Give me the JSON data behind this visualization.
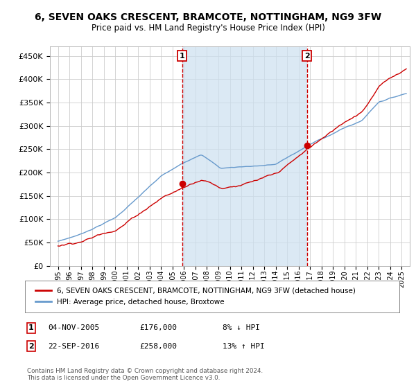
{
  "title": "6, SEVEN OAKS CRESCENT, BRAMCOTE, NOTTINGHAM, NG9 3FW",
  "subtitle": "Price paid vs. HM Land Registry's House Price Index (HPI)",
  "ylim": [
    0,
    470000
  ],
  "yticks": [
    0,
    50000,
    100000,
    150000,
    200000,
    250000,
    300000,
    350000,
    400000,
    450000
  ],
  "ytick_labels": [
    "£0",
    "£50K",
    "£100K",
    "£150K",
    "£200K",
    "£250K",
    "£300K",
    "£350K",
    "£400K",
    "£450K"
  ],
  "xlim": [
    1994.3,
    2025.7
  ],
  "xticks": [
    1995,
    1996,
    1997,
    1998,
    1999,
    2000,
    2001,
    2002,
    2003,
    2004,
    2005,
    2006,
    2007,
    2008,
    2009,
    2010,
    2011,
    2012,
    2013,
    2014,
    2015,
    2016,
    2017,
    2018,
    2019,
    2020,
    2021,
    2022,
    2023,
    2024,
    2025
  ],
  "sale1_x": 2005.84,
  "sale1_price": 176000,
  "sale2_x": 2016.72,
  "sale2_price": 258000,
  "legend_property": "6, SEVEN OAKS CRESCENT, BRAMCOTE, NOTTINGHAM, NG9 3FW (detached house)",
  "legend_hpi": "HPI: Average price, detached house, Broxtowe",
  "property_color": "#cc0000",
  "hpi_color": "#6699cc",
  "plot_bg": "#ffffff",
  "shade_color": "#cce0f0",
  "grid_color": "#cccccc",
  "footer": "Contains HM Land Registry data © Crown copyright and database right 2024.\nThis data is licensed under the Open Government Licence v3.0.",
  "table_row1": [
    "1",
    "04-NOV-2005",
    "£176,000",
    "8% ↓ HPI"
  ],
  "table_row2": [
    "2",
    "22-SEP-2016",
    "£258,000",
    "13% ↑ HPI"
  ]
}
